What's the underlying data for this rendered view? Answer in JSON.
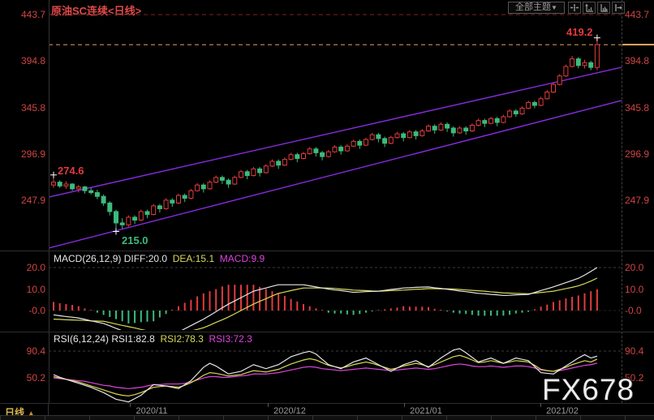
{
  "header": {
    "title": "原油SC连续<日线>",
    "theme_button": {
      "label": "全部主题",
      "arrow": "▼"
    },
    "toolbar_icons": [
      "crosshair",
      "scale-y-axis",
      "scale-x-axis",
      "shift-right"
    ]
  },
  "watermark": "FX678",
  "bottom_bar": {
    "period": "日线",
    "arrow": "▲",
    "dates": [
      "2020/11",
      "2020/12",
      "2021/01",
      "2021/02"
    ]
  },
  "colors": {
    "up": "#e23b3e",
    "down": "#3cbb7c",
    "axis_text": "#cf4444",
    "channel": "#8a2be2",
    "last_price_line": "#e9a35b",
    "high_grid_line": "#7e2327",
    "diff_line": "#e6e6e6",
    "dea_line": "#d9d957",
    "macd_text": "#dd44dd",
    "grid_dash": "#3c3c3c",
    "date_text": "#9a9a9a",
    "cross": "#ffffff",
    "anno_high": "#e23b3e",
    "anno_low": "#3cbb7c"
  },
  "chart_data": [
    {
      "type": "candlestick",
      "symbol": "原油SC连续",
      "period": "日线",
      "y_axis": [
        443.7,
        394.8,
        345.8,
        296.9,
        247.9
      ],
      "x_labels": [
        "2020/11",
        "2020/12",
        "2021/01",
        "2021/02"
      ],
      "annotations": {
        "first_high": "274.6",
        "lowest_low": "215.0",
        "highest_high": "419.2"
      },
      "marks": [
        {
          "i": 0,
          "price": 274.6
        },
        {
          "i": 10,
          "price": 215.0
        },
        {
          "i": 87,
          "price": 419.2
        }
      ],
      "last_price": 412.0,
      "high_line": 443.7,
      "channel": {
        "upper": [
          251.3,
          388.1
        ],
        "lower": [
          197.5,
          353.1
        ]
      },
      "candles_ohlc": [
        [
          264,
          274.6,
          261,
          267
        ],
        [
          267,
          269,
          261,
          263
        ],
        [
          263,
          268,
          260,
          265
        ],
        [
          265,
          266,
          258,
          260
        ],
        [
          260,
          264,
          256,
          262
        ],
        [
          262,
          263,
          255,
          258
        ],
        [
          258,
          261,
          254,
          256
        ],
        [
          256,
          259,
          249,
          252
        ],
        [
          252,
          254,
          242,
          245
        ],
        [
          245,
          247,
          232,
          236
        ],
        [
          236,
          238,
          215,
          224
        ],
        [
          224,
          229,
          218,
          222
        ],
        [
          222,
          232,
          220,
          230
        ],
        [
          230,
          232,
          223,
          227
        ],
        [
          227,
          238,
          226,
          236
        ],
        [
          236,
          238,
          229,
          233
        ],
        [
          233,
          244,
          232,
          242
        ],
        [
          242,
          244,
          235,
          239
        ],
        [
          239,
          250,
          238,
          248
        ],
        [
          248,
          250,
          241,
          245
        ],
        [
          245,
          255,
          244,
          253
        ],
        [
          253,
          255,
          246,
          250
        ],
        [
          250,
          260,
          249,
          258
        ],
        [
          258,
          266,
          257,
          264
        ],
        [
          264,
          266,
          256,
          260
        ],
        [
          260,
          269,
          259,
          267
        ],
        [
          267,
          274,
          266,
          272
        ],
        [
          272,
          274,
          265,
          269
        ],
        [
          269,
          271,
          261,
          265
        ],
        [
          265,
          274,
          264,
          272
        ],
        [
          272,
          280,
          271,
          278
        ],
        [
          278,
          280,
          270,
          274
        ],
        [
          274,
          283,
          273,
          281
        ],
        [
          281,
          283,
          273,
          277
        ],
        [
          277,
          286,
          276,
          284
        ],
        [
          284,
          291,
          283,
          289
        ],
        [
          289,
          291,
          281,
          285
        ],
        [
          285,
          293,
          284,
          291
        ],
        [
          291,
          298,
          290,
          296
        ],
        [
          296,
          298,
          288,
          292
        ],
        [
          292,
          299,
          291,
          297
        ],
        [
          297,
          304,
          296,
          302
        ],
        [
          302,
          304,
          294,
          298
        ],
        [
          298,
          300,
          290,
          294
        ],
        [
          294,
          301,
          293,
          299
        ],
        [
          299,
          306,
          298,
          304
        ],
        [
          304,
          306,
          296,
          300
        ],
        [
          300,
          307,
          299,
          305
        ],
        [
          305,
          312,
          304,
          310
        ],
        [
          310,
          312,
          302,
          306
        ],
        [
          306,
          314,
          305,
          312
        ],
        [
          312,
          319,
          311,
          317
        ],
        [
          317,
          319,
          309,
          313
        ],
        [
          313,
          315,
          304,
          308
        ],
        [
          308,
          316,
          307,
          314
        ],
        [
          314,
          320,
          313,
          318
        ],
        [
          318,
          320,
          310,
          314
        ],
        [
          314,
          322,
          313,
          320
        ],
        [
          320,
          322,
          312,
          316
        ],
        [
          316,
          323,
          315,
          321
        ],
        [
          321,
          328,
          320,
          326
        ],
        [
          326,
          328,
          318,
          322
        ],
        [
          322,
          330,
          321,
          328
        ],
        [
          328,
          330,
          320,
          324
        ],
        [
          324,
          326,
          315,
          319
        ],
        [
          319,
          326,
          318,
          324
        ],
        [
          324,
          326,
          317,
          321
        ],
        [
          321,
          329,
          320,
          327
        ],
        [
          327,
          334,
          326,
          332
        ],
        [
          332,
          334,
          325,
          329
        ],
        [
          329,
          336,
          328,
          334
        ],
        [
          334,
          336,
          326,
          330
        ],
        [
          330,
          338,
          329,
          336
        ],
        [
          336,
          344,
          335,
          342
        ],
        [
          342,
          344,
          336,
          339
        ],
        [
          339,
          347,
          338,
          345
        ],
        [
          345,
          353,
          344,
          351
        ],
        [
          351,
          353,
          345,
          348
        ],
        [
          348,
          357,
          347,
          355
        ],
        [
          355,
          364,
          354,
          362
        ],
        [
          362,
          372,
          361,
          370
        ],
        [
          370,
          381,
          369,
          379
        ],
        [
          379,
          391,
          378,
          389
        ],
        [
          389,
          400,
          388,
          397
        ],
        [
          397,
          399,
          387,
          390
        ],
        [
          390,
          396,
          387,
          393
        ],
        [
          393,
          395,
          385,
          388
        ],
        [
          388,
          419.2,
          385,
          412
        ]
      ]
    },
    {
      "type": "macd",
      "labels": {
        "params": "MACD(26,12,9)",
        "diff": "DIFF:20.0",
        "dea": "DEA:15.1",
        "macd": "MACD:9.9"
      },
      "y_axis": [
        "20.0",
        "10.0",
        "-0.0"
      ],
      "y_values": [
        20,
        10,
        0
      ],
      "diff": [
        -2,
        -2.4,
        -2.8,
        -3.1,
        -3.5,
        -4.1,
        -4.8,
        -5.4,
        -6,
        -7.1,
        -8.3,
        -9.4,
        -10.5,
        -11,
        -11.5,
        -12,
        -12.5,
        -11.9,
        -11.3,
        -10.6,
        -10,
        -8.5,
        -7,
        -5.5,
        -4,
        -2.3,
        -0.5,
        1.3,
        3,
        4.5,
        6,
        7.5,
        9,
        9.8,
        10.5,
        11.3,
        12,
        12,
        12,
        12,
        12,
        11.5,
        11,
        10.5,
        10,
        9.6,
        9.3,
        8.9,
        8.5,
        8.6,
        8.8,
        8.9,
        9,
        9.4,
        9.8,
        10.1,
        10.5,
        10.6,
        10.8,
        10.9,
        11,
        10.6,
        10.3,
        9.9,
        9.5,
        9.1,
        8.8,
        8.4,
        8,
        7.8,
        7.5,
        7.3,
        7,
        7.1,
        7.3,
        7.4,
        7.5,
        8.4,
        9.3,
        10.1,
        11,
        12,
        13,
        14,
        15,
        16.5,
        18.2,
        20
      ],
      "dea": [
        -4,
        -4.1,
        -4.3,
        -4.4,
        -4.5,
        -4.6,
        -4.8,
        -4.9,
        -5,
        -5.6,
        -6.3,
        -6.9,
        -7.5,
        -8.1,
        -8.8,
        -9.4,
        -10,
        -10.3,
        -10.5,
        -10.8,
        -11,
        -10.3,
        -9.5,
        -8.8,
        -8,
        -6.8,
        -5.5,
        -4.3,
        -3,
        -1.5,
        0,
        1.5,
        3,
        4.3,
        5.5,
        6.8,
        8,
        8.6,
        9.3,
        9.9,
        10.5,
        10.5,
        10.5,
        10.5,
        10.5,
        10.3,
        10,
        9.8,
        9.5,
        9.4,
        9.3,
        9.1,
        9,
        9.1,
        9.3,
        9.4,
        9.5,
        9.7,
        9.9,
        10,
        10.2,
        10.2,
        10.1,
        10.1,
        10,
        9.8,
        9.6,
        9.4,
        9.2,
        9,
        8.7,
        8.5,
        8.2,
        8.1,
        8,
        7.9,
        7.8,
        8.1,
        8.4,
        8.7,
        9,
        9.6,
        10.2,
        10.8,
        11.5,
        12.5,
        13.7,
        15.1
      ],
      "hist": [
        4,
        3.4,
        3,
        2.6,
        2,
        1,
        0,
        -1,
        -2,
        -3,
        -4,
        -5,
        -6,
        -5.8,
        -5.4,
        -5.2,
        -5,
        -3.2,
        -1.6,
        0.4,
        2,
        3.6,
        5,
        6.6,
        8,
        9,
        10,
        11.2,
        12,
        12,
        12,
        12,
        12,
        11,
        10,
        9,
        8,
        6.8,
        5.4,
        4.2,
        3,
        2,
        1,
        0,
        -1,
        -1.4,
        -1.4,
        -1.8,
        -2,
        -1.6,
        -1,
        -0.4,
        0,
        0.6,
        1,
        1.4,
        2,
        1.8,
        1.8,
        1.8,
        1.6,
        0.8,
        0.4,
        -0.4,
        -1,
        -1.4,
        -1.6,
        -2,
        -2.4,
        -2.4,
        -2.4,
        -2.4,
        -2.4,
        -2,
        -1.4,
        -1,
        -0.6,
        0.6,
        1.8,
        2.8,
        4,
        4.8,
        5.6,
        6.4,
        7,
        8,
        9,
        9.9
      ]
    },
    {
      "type": "rsi",
      "labels": {
        "params": "RSI(6,12,24)",
        "rsi1": "RSI1:82.8",
        "rsi2": "RSI2:78.3",
        "rsi3": "RSI3:72.3"
      },
      "y_axis": [
        "90.4",
        "50.2"
      ],
      "y_values": [
        90.4,
        50.2
      ],
      "rsi1": [
        55,
        51,
        48,
        45,
        42,
        39,
        36,
        32,
        28,
        23,
        18,
        16,
        14,
        19,
        24,
        32,
        40,
        39,
        38,
        36,
        34,
        40,
        46,
        56,
        66,
        72,
        68,
        62,
        56,
        58,
        60,
        65,
        70,
        67,
        64,
        67,
        70,
        76,
        82,
        85,
        88,
        90,
        86,
        78,
        70,
        67,
        64,
        69,
        74,
        77,
        80,
        75,
        70,
        65,
        60,
        65,
        70,
        73,
        76,
        71,
        66,
        73,
        80,
        86,
        92,
        94,
        88,
        81,
        74,
        77,
        80,
        76,
        72,
        76,
        80,
        78,
        76,
        67,
        58,
        57,
        56,
        62,
        68,
        74,
        80,
        85,
        80,
        82.8
      ],
      "rsi2": [
        52,
        50,
        48,
        46,
        44,
        41,
        38,
        35,
        32,
        29,
        26,
        24,
        23,
        25,
        28,
        32,
        36,
        37,
        38,
        37,
        36,
        39,
        43,
        48,
        54,
        58,
        57,
        55,
        53,
        54,
        55,
        58,
        61,
        60,
        59,
        61,
        63,
        67,
        71,
        74,
        77,
        79,
        77,
        73,
        69,
        67,
        65,
        67,
        70,
        72,
        74,
        72,
        69,
        66,
        63,
        65,
        68,
        70,
        72,
        70,
        67,
        70,
        74,
        78,
        82,
        84,
        81,
        77,
        73,
        74,
        76,
        74,
        72,
        74,
        76,
        75,
        74,
        69,
        63,
        61,
        60,
        63,
        66,
        70,
        73,
        76,
        74,
        78.3
      ],
      "rsi3": [
        50,
        49,
        48,
        47,
        46,
        45,
        43,
        41,
        39,
        38,
        36,
        35,
        34,
        35,
        36,
        38,
        40,
        40,
        41,
        41,
        41,
        42,
        44,
        47,
        50,
        52,
        52,
        51,
        51,
        52,
        53,
        54,
        56,
        56,
        56,
        57,
        58,
        60,
        62,
        64,
        66,
        67,
        66,
        64,
        63,
        62,
        61,
        62,
        63,
        64,
        65,
        64,
        63,
        62,
        61,
        62,
        63,
        64,
        65,
        64,
        63,
        64,
        66,
        68,
        70,
        71,
        70,
        68,
        67,
        67,
        68,
        67,
        66,
        67,
        68,
        68,
        67,
        65,
        62,
        61,
        60,
        61,
        63,
        65,
        67,
        69,
        70,
        72.3
      ]
    }
  ]
}
